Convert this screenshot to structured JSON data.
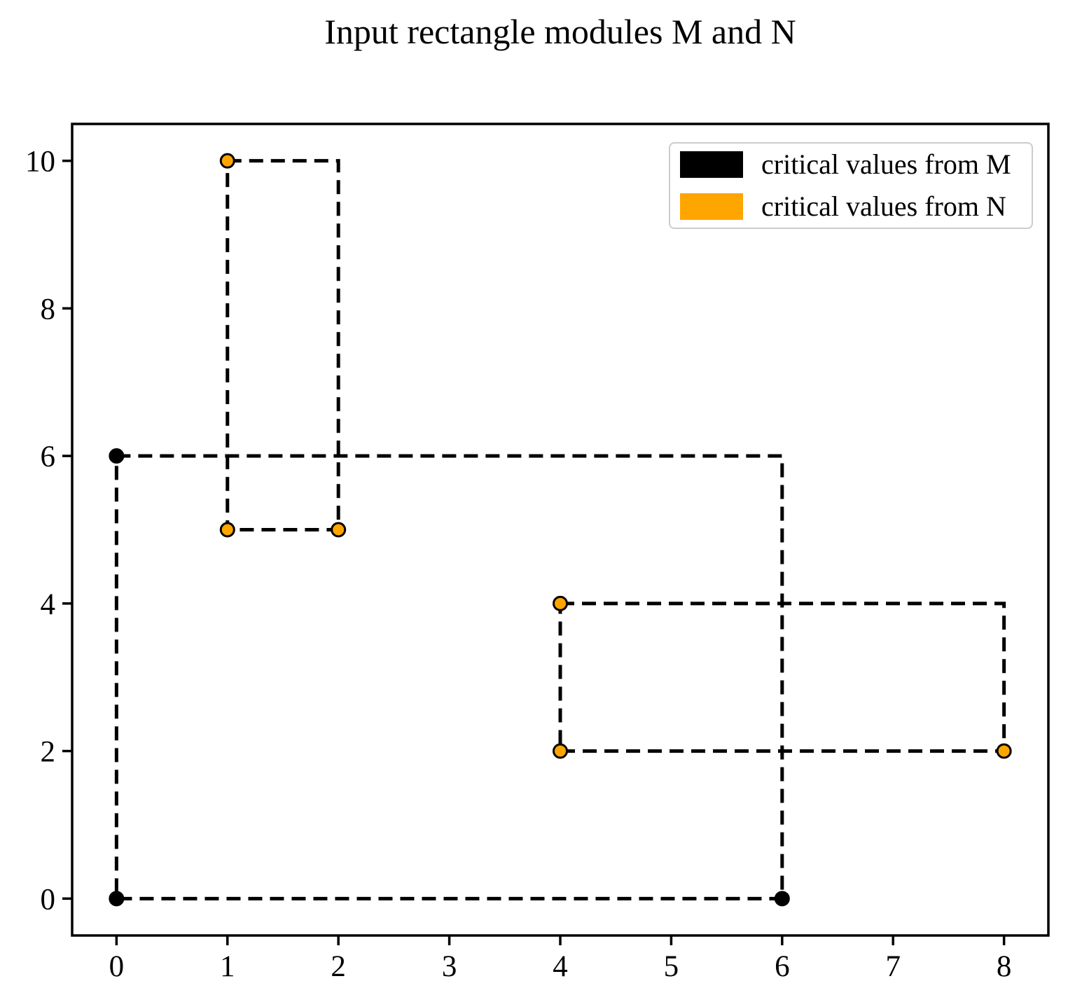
{
  "figure": {
    "title": "Input rectangle modules M and N",
    "background_color": "#ffffff",
    "axis_color": "#000000"
  },
  "legend": {
    "items": [
      {
        "id": "M",
        "label": "critical values from M",
        "color": "#000000"
      },
      {
        "id": "N",
        "label": "critical values from N",
        "color": "#ffa500"
      }
    ]
  },
  "chart_data": {
    "type": "line",
    "title": "Input rectangle modules M and N",
    "xlabel": "",
    "ylabel": "",
    "xlim": [
      -0.4,
      8.4
    ],
    "ylim": [
      -0.5,
      10.5
    ],
    "xticks": [
      0,
      1,
      2,
      3,
      4,
      5,
      6,
      7,
      8
    ],
    "yticks": [
      0,
      2,
      4,
      6,
      8,
      10
    ],
    "grid": false,
    "legend_position": "upper-right",
    "line_style": "dashed",
    "line_color": "#000000",
    "rectangles": [
      {
        "module": "M",
        "x": 0,
        "y": 0,
        "width": 6,
        "height": 6
      },
      {
        "module": "N",
        "x": 1,
        "y": 5,
        "width": 1,
        "height": 5
      },
      {
        "module": "N",
        "x": 4,
        "y": 2,
        "width": 4,
        "height": 2
      }
    ],
    "critical_points": [
      {
        "module": "M",
        "color": "#000000",
        "points": [
          [
            0,
            0
          ],
          [
            6,
            0
          ],
          [
            0,
            6
          ]
        ]
      },
      {
        "module": "N",
        "color": "#ffa500",
        "points": [
          [
            1,
            10
          ],
          [
            1,
            5
          ],
          [
            2,
            5
          ],
          [
            4,
            4
          ],
          [
            4,
            2
          ],
          [
            8,
            2
          ]
        ]
      }
    ]
  }
}
